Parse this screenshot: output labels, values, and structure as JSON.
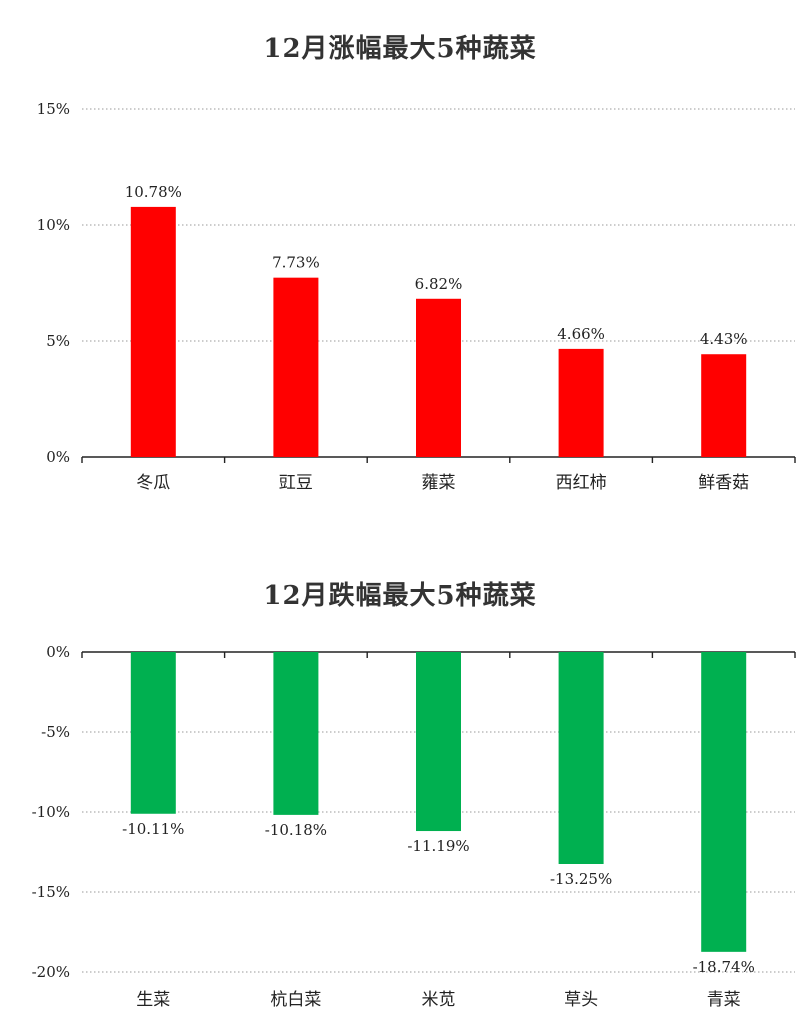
{
  "chart_data": [
    {
      "type": "bar",
      "title": "12月涨幅最大5种蔬菜",
      "xlabel": "",
      "ylabel": "",
      "categories": [
        "冬瓜",
        "豇豆",
        "蕹菜",
        "西红柿",
        "鲜香菇"
      ],
      "values": [
        10.78,
        7.73,
        6.82,
        4.66,
        4.43
      ],
      "data_labels": [
        "10.78%",
        "7.73%",
        "6.82%",
        "4.66%",
        "4.43%"
      ],
      "ylim": [
        0,
        15
      ],
      "yticks": [
        0,
        5,
        10,
        15
      ],
      "ytick_labels": [
        "0%",
        "5%",
        "10%",
        "15%"
      ],
      "grid": true,
      "color": "#ff0000"
    },
    {
      "type": "bar",
      "title": "12月跌幅最大5种蔬菜",
      "xlabel": "",
      "ylabel": "",
      "categories": [
        "生菜",
        "杭白菜",
        "米苋",
        "草头",
        "青菜"
      ],
      "values": [
        -10.11,
        -10.18,
        -11.19,
        -13.25,
        -18.74
      ],
      "data_labels": [
        "-10.11%",
        "-10.18%",
        "-11.19%",
        "-13.25%",
        "-18.74%"
      ],
      "ylim": [
        -20,
        0
      ],
      "yticks": [
        0,
        -5,
        -10,
        -15,
        -20
      ],
      "ytick_labels": [
        "0%",
        "-5%",
        "-10%",
        "-15%",
        "-20%"
      ],
      "grid": true,
      "color": "#00b050"
    }
  ]
}
